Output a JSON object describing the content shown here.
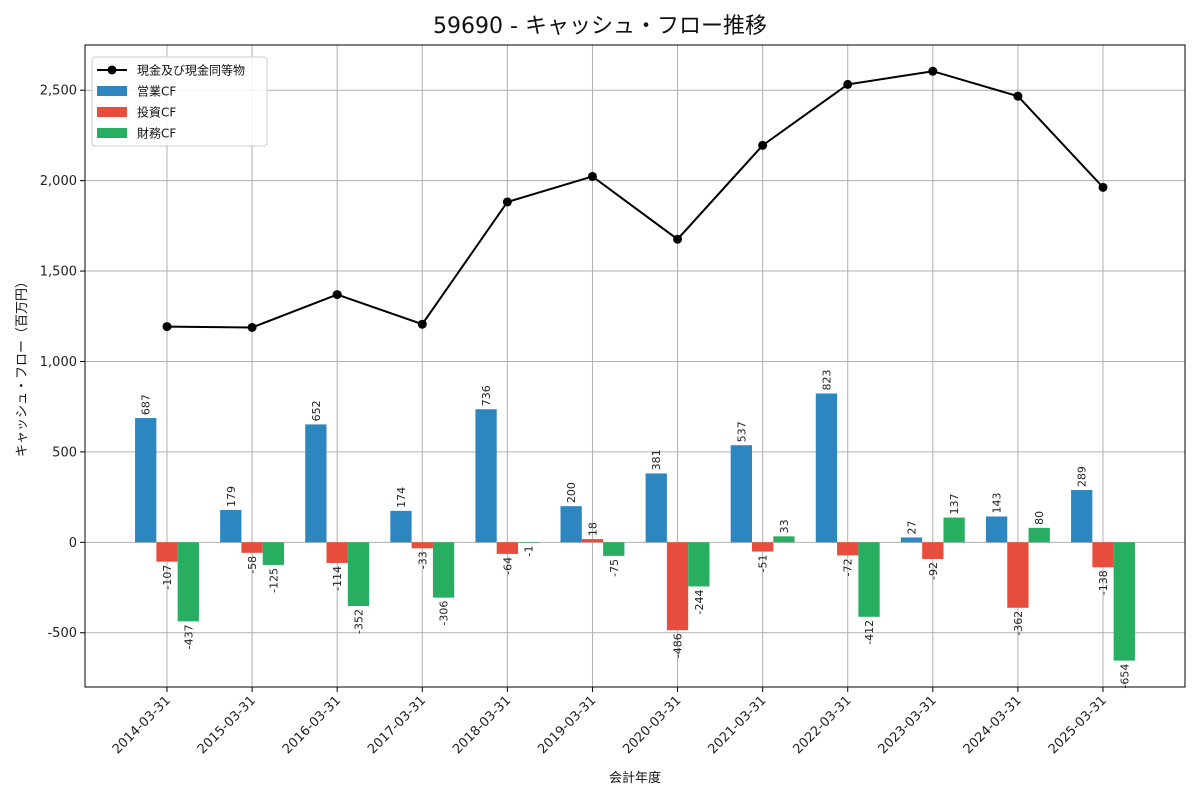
{
  "chart_data": {
    "type": "bar",
    "title": "59690 - キャッシュ・フロー推移",
    "xlabel": "会計年度",
    "ylabel": "キャッシュ・フロー（百万円）",
    "ylim": [
      -800,
      2750
    ],
    "yticks": [
      -500,
      0,
      500,
      1000,
      1500,
      2000,
      2500
    ],
    "ytick_labels": [
      "-500",
      "0",
      "500",
      "1,000",
      "1,500",
      "2,000",
      "2,500"
    ],
    "grid": true,
    "legend_position": "top-left",
    "categories": [
      "2014-03-31",
      "2015-03-31",
      "2016-03-31",
      "2017-03-31",
      "2018-03-31",
      "2019-03-31",
      "2020-03-31",
      "2021-03-31",
      "2022-03-31",
      "2023-03-31",
      "2024-03-31",
      "2025-03-31"
    ],
    "series": [
      {
        "name": "営業CF",
        "kind": "bar",
        "color": "#2e86c1",
        "values": [
          687,
          179,
          652,
          174,
          736,
          200,
          381,
          537,
          823,
          27,
          143,
          289
        ]
      },
      {
        "name": "投資CF",
        "kind": "bar",
        "color": "#e74c3c",
        "values": [
          -107,
          -58,
          -114,
          -33,
          -64,
          18,
          -486,
          -51,
          -72,
          -92,
          -362,
          -138
        ]
      },
      {
        "name": "財務CF",
        "kind": "bar",
        "color": "#27ae60",
        "values": [
          -437,
          -125,
          -352,
          -306,
          -1,
          -75,
          -244,
          33,
          -412,
          137,
          80,
          -654
        ]
      },
      {
        "name": "現金及び現金同等物",
        "kind": "line",
        "color": "#000000",
        "values": [
          1193,
          1188,
          1370,
          1206,
          1882,
          2023,
          1676,
          2195,
          2532,
          2605,
          2467,
          1963
        ]
      }
    ]
  }
}
